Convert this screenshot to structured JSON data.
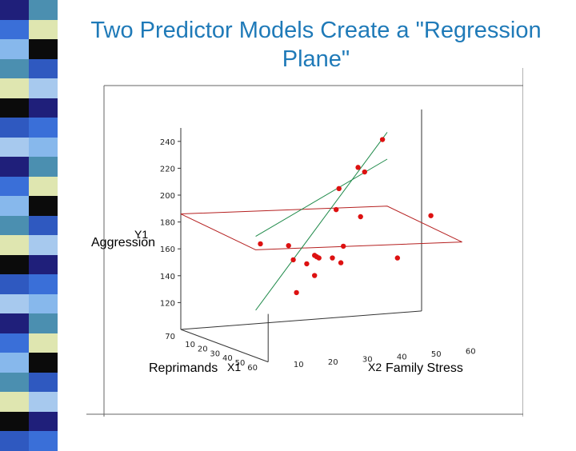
{
  "slide": {
    "title": "Two Predictor Models Create a \"Regression Plane\""
  },
  "stripe": {
    "colors": [
      "#1f1f7a",
      "#3a6fd8",
      "#87b8ec",
      "#4b8fb0",
      "#dfe6b0",
      "#0b0b0b",
      "#2f59c0",
      "#a7c9ee"
    ]
  },
  "chart_data": {
    "type": "scatter",
    "projection": "3d",
    "yaxis_label": "Aggression",
    "yaxis_var": "Y1",
    "x1axis_label": "Reprimands",
    "x1axis_var": "X1",
    "x2axis_label": "Family  Stress",
    "x2axis_var": "X2",
    "y_ticks": [
      240,
      220,
      200,
      180,
      160,
      140,
      120
    ],
    "y_corner_tick": 70,
    "x1_ticks": [
      60,
      50,
      40,
      30,
      20,
      10
    ],
    "x2_ticks": [
      10,
      20,
      30,
      40,
      50,
      60
    ],
    "ylim": [
      100,
      250
    ],
    "x1lim": [
      0,
      70
    ],
    "x2lim": [
      0,
      70
    ],
    "grid": false,
    "colors": {
      "points": "#dd1111",
      "plane": "#b52020",
      "line": "#1f8a4a",
      "axes": "#333333",
      "frame": "#555555"
    },
    "points": [
      {
        "x1": 10,
        "x2": 55,
        "y": 234
      },
      {
        "x1": 18,
        "x2": 45,
        "y": 218
      },
      {
        "x1": 15,
        "x2": 48,
        "y": 213
      },
      {
        "x1": 22,
        "x2": 38,
        "y": 205
      },
      {
        "x1": 28,
        "x2": 35,
        "y": 192
      },
      {
        "x1": 20,
        "x2": 45,
        "y": 182
      },
      {
        "x1": 50,
        "x2": 5,
        "y": 180
      },
      {
        "x1": 35,
        "x2": 60,
        "y": 185
      },
      {
        "x1": 45,
        "x2": 15,
        "y": 175
      },
      {
        "x1": 40,
        "x2": 25,
        "y": 163
      },
      {
        "x1": 35,
        "x2": 20,
        "y": 160
      },
      {
        "x1": 30,
        "x2": 28,
        "y": 160
      },
      {
        "x1": 32,
        "x2": 25,
        "y": 155
      },
      {
        "x1": 28,
        "x2": 30,
        "y": 157
      },
      {
        "x1": 25,
        "x2": 35,
        "y": 155
      },
      {
        "x1": 20,
        "x2": 40,
        "y": 161
      },
      {
        "x1": 30,
        "x2": 28,
        "y": 145
      },
      {
        "x1": 18,
        "x2": 40,
        "y": 148
      },
      {
        "x1": 22,
        "x2": 55,
        "y": 150
      },
      {
        "x1": 10,
        "x2": 30,
        "y": 125
      }
    ],
    "plane": [
      {
        "x1": 60,
        "x2": 0,
        "y": 180
      },
      {
        "x1": 0,
        "x2": 0,
        "y": 186
      },
      {
        "x1": 0,
        "x2": 60,
        "y": 180
      },
      {
        "x1": 60,
        "x2": 60,
        "y": 174
      }
    ],
    "lines": [
      [
        {
          "x1": 60,
          "x2": 0,
          "y": 135
        },
        {
          "x1": 0,
          "x2": 60,
          "y": 235
        }
      ],
      [
        {
          "x1": 60,
          "x2": 0,
          "y": 190
        },
        {
          "x1": 0,
          "x2": 60,
          "y": 215
        }
      ]
    ]
  }
}
